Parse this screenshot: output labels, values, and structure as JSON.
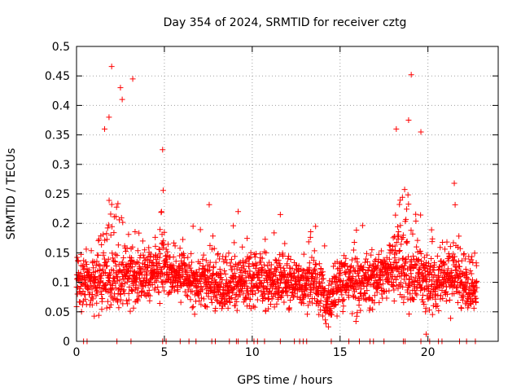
{
  "chart_data": {
    "type": "scatter",
    "title": "Day 354 of 2024, SRMTID for receiver cztg",
    "xlabel": "GPS time / hours",
    "ylabel": "SRMTID / TECUs",
    "xlim": [
      0,
      24
    ],
    "ylim": [
      0,
      0.5
    ],
    "xticks": [
      0,
      5,
      10,
      15,
      20
    ],
    "xtick_labels": [
      "0",
      "5",
      "10",
      "15",
      "20"
    ],
    "yticks": [
      0,
      0.05,
      0.1,
      0.15,
      0.2,
      0.25,
      0.3,
      0.35,
      0.4,
      0.45,
      0.5
    ],
    "ytick_labels": [
      "0",
      "0.05",
      "0.1",
      "0.15",
      "0.2",
      "0.25",
      "0.3",
      "0.35",
      "0.4",
      "0.45",
      "0.5"
    ],
    "grid": true,
    "marker": "plus",
    "series_color": "#ff0000",
    "time_range_hours": [
      0,
      22.8
    ],
    "baseline_level": 0.1,
    "peaks": [
      {
        "x": 1.6,
        "y": 0.36
      },
      {
        "x": 1.85,
        "y": 0.38
      },
      {
        "x": 2.0,
        "y": 0.466
      },
      {
        "x": 2.5,
        "y": 0.43
      },
      {
        "x": 2.6,
        "y": 0.41
      },
      {
        "x": 3.2,
        "y": 0.445
      },
      {
        "x": 4.9,
        "y": 0.325
      },
      {
        "x": 9.2,
        "y": 0.22
      },
      {
        "x": 11.6,
        "y": 0.215
      },
      {
        "x": 14.2,
        "y": 0.03
      },
      {
        "x": 18.2,
        "y": 0.36
      },
      {
        "x": 18.9,
        "y": 0.375
      },
      {
        "x": 19.05,
        "y": 0.452
      },
      {
        "x": 19.6,
        "y": 0.355
      },
      {
        "x": 19.9,
        "y": 0.012
      },
      {
        "x": 21.5,
        "y": 0.268
      }
    ],
    "zero_points_x": [
      0.4,
      0.6,
      2.3,
      3.1,
      4.9,
      5.1,
      5.9,
      6.4,
      6.8,
      7.7,
      7.9,
      8.7,
      9.1,
      9.2,
      9.7,
      10.1,
      10.3,
      10.7,
      11.6,
      12.4,
      12.7,
      12.9,
      13.1,
      14.5,
      15.5,
      16.1,
      16.7,
      16.9,
      17.5,
      18.6,
      18.7,
      19.6,
      20.1,
      20.6,
      20.8,
      21.8,
      22.2,
      22.7
    ]
  }
}
